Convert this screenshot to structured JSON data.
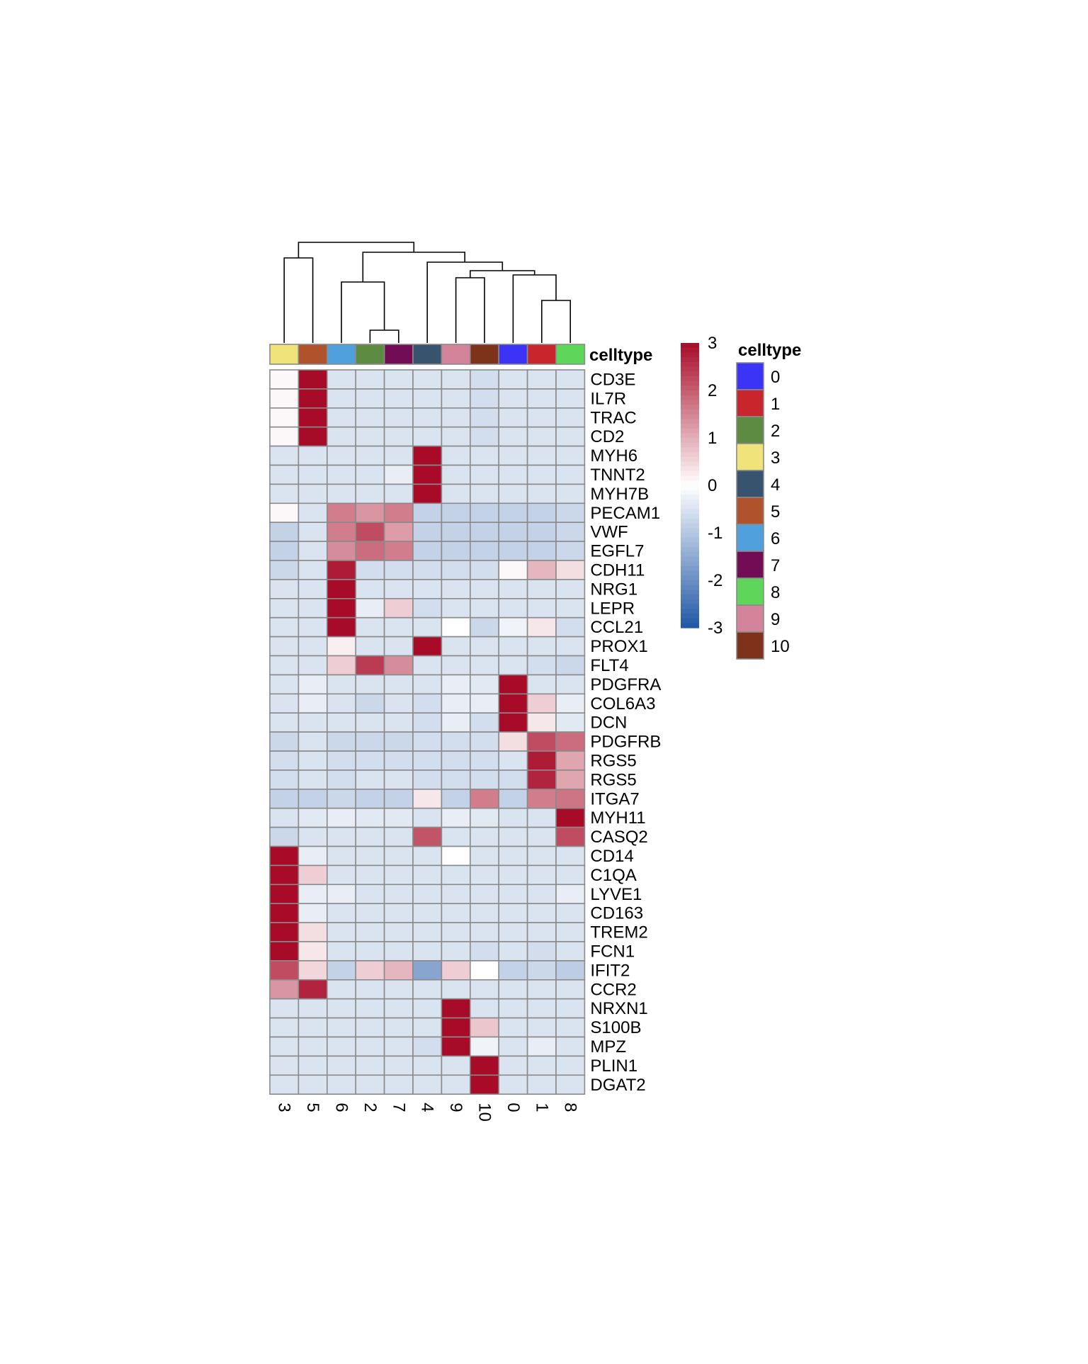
{
  "chart_data": {
    "type": "heatmap",
    "title": "",
    "xlabel": "",
    "ylabel": "",
    "columns": [
      "3",
      "5",
      "6",
      "2",
      "7",
      "4",
      "9",
      "10",
      "0",
      "1",
      "8"
    ],
    "rows": [
      "CD3E",
      "IL7R",
      "TRAC",
      "CD2",
      "MYH6",
      "TNNT2",
      "MYH7B",
      "PECAM1",
      "VWF",
      "EGFL7",
      "CDH11",
      "NRG1",
      "LEPR",
      "CCL21",
      "PROX1",
      "FLT4",
      "PDGFRA",
      "COL6A3",
      "DCN",
      "PDGFRB",
      "RGS5",
      "RGS5",
      "ITGA7",
      "MYH11",
      "CASQ2",
      "CD14",
      "C1QA",
      "LYVE1",
      "CD163",
      "TREM2",
      "FCN1",
      "IFIT2",
      "CCR2",
      "NRXN1",
      "S100B",
      "MPZ",
      "PLIN1",
      "DGAT2"
    ],
    "values": [
      [
        0.1,
        3,
        -0.5,
        -0.5,
        -0.5,
        -0.5,
        -0.5,
        -0.6,
        -0.5,
        -0.5,
        -0.5
      ],
      [
        0.1,
        3,
        -0.5,
        -0.5,
        -0.5,
        -0.5,
        -0.5,
        -0.6,
        -0.5,
        -0.5,
        -0.5
      ],
      [
        0.1,
        3,
        -0.5,
        -0.5,
        -0.5,
        -0.5,
        -0.5,
        -0.6,
        -0.5,
        -0.5,
        -0.5
      ],
      [
        0.1,
        3,
        -0.5,
        -0.5,
        -0.5,
        -0.5,
        -0.5,
        -0.6,
        -0.5,
        -0.5,
        -0.5
      ],
      [
        -0.5,
        -0.5,
        -0.5,
        -0.5,
        -0.5,
        3,
        -0.5,
        -0.5,
        -0.5,
        -0.5,
        -0.5
      ],
      [
        -0.5,
        -0.5,
        -0.5,
        -0.5,
        -0.3,
        3,
        -0.5,
        -0.5,
        -0.5,
        -0.5,
        -0.5
      ],
      [
        -0.5,
        -0.5,
        -0.5,
        -0.5,
        -0.5,
        3,
        -0.5,
        -0.5,
        -0.5,
        -0.5,
        -0.5
      ],
      [
        0.1,
        -0.5,
        1.6,
        1.3,
        1.6,
        -0.8,
        -0.8,
        -0.8,
        -0.8,
        -0.8,
        -0.7
      ],
      [
        -0.8,
        -0.5,
        1.6,
        2.2,
        1.2,
        -0.8,
        -0.8,
        -0.8,
        -0.8,
        -0.8,
        -0.7
      ],
      [
        -0.8,
        -0.5,
        1.4,
        1.8,
        1.6,
        -0.8,
        -0.8,
        -0.8,
        -0.8,
        -0.8,
        -0.7
      ],
      [
        -0.7,
        -0.5,
        2.8,
        -0.6,
        -0.6,
        -0.6,
        -0.6,
        -0.6,
        0.1,
        0.9,
        0.4
      ],
      [
        -0.5,
        -0.5,
        3,
        -0.5,
        -0.5,
        -0.5,
        -0.5,
        -0.5,
        -0.5,
        -0.5,
        -0.5
      ],
      [
        -0.5,
        -0.5,
        3,
        -0.3,
        0.6,
        -0.6,
        -0.5,
        -0.5,
        -0.5,
        -0.5,
        -0.5
      ],
      [
        -0.5,
        -0.5,
        3,
        -0.5,
        -0.5,
        -0.5,
        0,
        -0.7,
        -0.2,
        0.3,
        -0.6
      ],
      [
        -0.5,
        -0.5,
        0.2,
        -0.5,
        -0.5,
        3,
        -0.5,
        -0.5,
        -0.5,
        -0.5,
        -0.5
      ],
      [
        -0.5,
        -0.5,
        0.6,
        2.4,
        1.4,
        -0.5,
        -0.5,
        -0.5,
        -0.5,
        -0.6,
        -0.7
      ],
      [
        -0.5,
        -0.3,
        -0.5,
        -0.5,
        -0.5,
        -0.5,
        -0.3,
        -0.4,
        3,
        -0.5,
        -0.5
      ],
      [
        -0.5,
        -0.3,
        -0.5,
        -0.7,
        -0.5,
        -0.6,
        -0.3,
        -0.3,
        3,
        0.6,
        -0.3
      ],
      [
        -0.5,
        -0.5,
        -0.5,
        -0.5,
        -0.5,
        -0.6,
        -0.3,
        -0.6,
        3,
        0.3,
        -0.4
      ],
      [
        -0.7,
        -0.5,
        -0.7,
        -0.7,
        -0.7,
        -0.6,
        -0.6,
        -0.6,
        0.4,
        2.2,
        1.8
      ],
      [
        -0.6,
        -0.5,
        -0.6,
        -0.6,
        -0.6,
        -0.6,
        -0.6,
        -0.6,
        -0.5,
        2.8,
        1.1
      ],
      [
        -0.6,
        -0.5,
        -0.6,
        -0.5,
        -0.5,
        -0.6,
        -0.6,
        -0.6,
        -0.6,
        2.7,
        1.1
      ],
      [
        -0.8,
        -0.8,
        -0.7,
        -0.8,
        -0.8,
        0.3,
        -0.8,
        1.6,
        -0.8,
        1.6,
        1.7
      ],
      [
        -0.5,
        -0.4,
        -0.3,
        -0.4,
        -0.4,
        -0.5,
        -0.3,
        -0.4,
        -0.5,
        -0.5,
        3
      ],
      [
        -0.7,
        -0.5,
        -0.5,
        -0.5,
        -0.5,
        2.1,
        -0.5,
        -0.5,
        -0.5,
        -0.5,
        2.2
      ],
      [
        3,
        -0.3,
        -0.5,
        -0.5,
        -0.5,
        -0.5,
        0,
        -0.5,
        -0.5,
        -0.5,
        -0.5
      ],
      [
        3,
        0.6,
        -0.5,
        -0.5,
        -0.5,
        -0.5,
        -0.5,
        -0.5,
        -0.5,
        -0.5,
        -0.5
      ],
      [
        3,
        -0.3,
        -0.3,
        -0.5,
        -0.5,
        -0.5,
        -0.5,
        -0.5,
        -0.5,
        -0.5,
        -0.3
      ],
      [
        3,
        -0.3,
        -0.5,
        -0.5,
        -0.5,
        -0.5,
        -0.5,
        -0.5,
        -0.5,
        -0.5,
        -0.5
      ],
      [
        3,
        0.4,
        -0.5,
        -0.5,
        -0.5,
        -0.5,
        -0.5,
        -0.5,
        -0.5,
        -0.5,
        -0.5
      ],
      [
        3,
        0.3,
        -0.5,
        -0.5,
        -0.5,
        -0.5,
        -0.5,
        -0.6,
        -0.5,
        -0.6,
        -0.5
      ],
      [
        2.2,
        0.5,
        -0.8,
        0.6,
        0.9,
        -1.6,
        0.6,
        0,
        -0.8,
        -0.7,
        -0.9
      ],
      [
        1.3,
        2.7,
        -0.5,
        -0.5,
        -0.5,
        -0.5,
        -0.5,
        -0.5,
        -0.5,
        -0.5,
        -0.5
      ],
      [
        -0.5,
        -0.5,
        -0.5,
        -0.5,
        -0.5,
        -0.5,
        3,
        -0.5,
        -0.5,
        -0.5,
        -0.5
      ],
      [
        -0.5,
        -0.5,
        -0.5,
        -0.5,
        -0.5,
        -0.5,
        3,
        0.7,
        -0.5,
        -0.5,
        -0.5
      ],
      [
        -0.5,
        -0.5,
        -0.5,
        -0.5,
        -0.5,
        -0.6,
        3,
        -0.2,
        -0.5,
        -0.3,
        -0.5
      ],
      [
        -0.5,
        -0.5,
        -0.5,
        -0.5,
        -0.5,
        -0.5,
        -0.5,
        3,
        -0.5,
        -0.5,
        -0.5
      ],
      [
        -0.5,
        -0.5,
        -0.5,
        -0.5,
        -0.5,
        -0.5,
        -0.5,
        3,
        -0.5,
        -0.5,
        -0.5
      ]
    ],
    "colorbar": {
      "ticks": [
        3,
        2,
        1,
        0,
        -1,
        -2,
        -3
      ],
      "range": [
        -3,
        3
      ],
      "colors": [
        "#1f57a6",
        "#ffffff",
        "#a80b28"
      ]
    },
    "annotation": {
      "name": "celltype",
      "track_label": "celltype",
      "legend_title": "celltype",
      "categories": [
        "0",
        "1",
        "2",
        "3",
        "4",
        "5",
        "6",
        "7",
        "8",
        "9",
        "10"
      ],
      "colors": {
        "0": "#3b33f5",
        "1": "#c8262c",
        "2": "#5e8b42",
        "3": "#efe37a",
        "4": "#38536e",
        "5": "#b0522c",
        "6": "#4fa0dc",
        "7": "#720d55",
        "8": "#5dd65a",
        "9": "#d3849a",
        "10": "#7e321a"
      }
    },
    "dendrogram": "column",
    "grid": true,
    "legend_position": "right"
  }
}
